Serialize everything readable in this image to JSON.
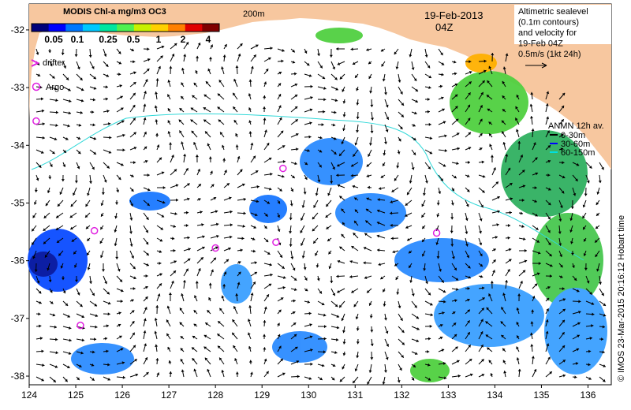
{
  "colorbar": {
    "title": "MODIS Chl-a mg/m3 OC3",
    "ticks": [
      "0.05",
      "0.1",
      "0.25",
      "0.5",
      "1",
      "2",
      "4"
    ],
    "colors": [
      "#00007a",
      "#0000ff",
      "#0078ff",
      "#00c8ff",
      "#00e6a0",
      "#50f050",
      "#c8f000",
      "#ffd000",
      "#ff8000",
      "#e00000",
      "#800000"
    ]
  },
  "depth_label": "200m",
  "date_label": "19-Feb-2013",
  "time_label": "04Z",
  "altimetry_note": {
    "lines": [
      "Altimetric sealevel",
      "(0.1m contours)",
      "and velocity for",
      "19-Feb 04Z",
      "0.5m/s (1kt 24h)"
    ]
  },
  "legend_left": {
    "drifter": "drifter",
    "argo": "Argo"
  },
  "anmn": {
    "title": "ANMN 12h av.",
    "items": [
      {
        "label": "0-30m",
        "color": "#000000"
      },
      {
        "label": "30-60m",
        "color": "#0000ff"
      },
      {
        "label": "60-150m",
        "color": "#00e0e0"
      }
    ]
  },
  "credit": "© IMOS 23-Mar-2015 20:16:12 Hobart time",
  "axes": {
    "x_ticks": [
      "124",
      "125",
      "126",
      "127",
      "128",
      "129",
      "130",
      "131",
      "132",
      "133",
      "134",
      "135",
      "136"
    ],
    "y_ticks": [
      "-32",
      "-33",
      "-34",
      "-35",
      "-36",
      "-37",
      "-38"
    ],
    "x_range": [
      124,
      136.5
    ],
    "y_range": [
      -38.15,
      -31.55
    ]
  },
  "argo_floats": [
    {
      "lon": 124.15,
      "lat": -33.58
    },
    {
      "lon": 129.45,
      "lat": -34.4
    },
    {
      "lon": 128.0,
      "lat": -35.78
    },
    {
      "lon": 129.3,
      "lat": -35.68
    },
    {
      "lon": 125.4,
      "lat": -35.48
    },
    {
      "lon": 132.75,
      "lat": -35.52
    },
    {
      "lon": 125.1,
      "lat": -37.12
    }
  ],
  "colors": {
    "land": "#f7c79f",
    "ocean": "#ffffff",
    "argo": "#e020e0",
    "contour": "#30d8d8"
  }
}
